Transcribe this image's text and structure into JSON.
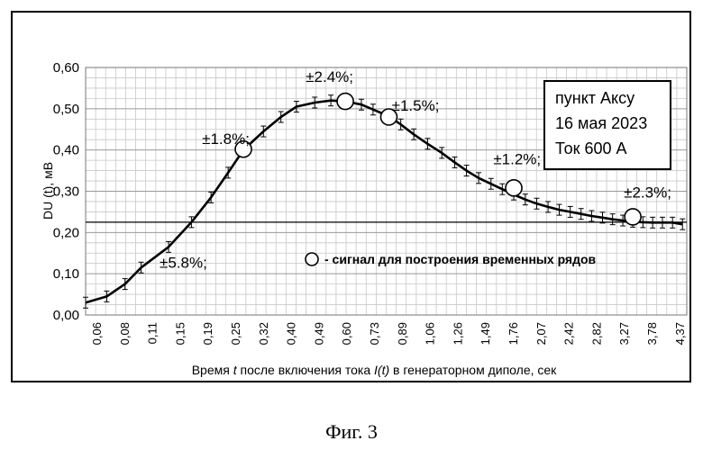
{
  "chart_data": {
    "type": "line",
    "ylabel": "DU (t), мВ",
    "xlabel": "Время t после включения тока I(t) в генераторном диполе, сек",
    "xlabel_parts": [
      {
        "text": "Время ",
        "italic": false
      },
      {
        "text": "t",
        "italic": true
      },
      {
        "text": " после включения тока ",
        "italic": false
      },
      {
        "text": "I(t)",
        "italic": true
      },
      {
        "text": " в генераторном диполе, сек",
        "italic": false
      }
    ],
    "ylim": [
      0,
      0.6
    ],
    "yticks": [
      "0,00",
      "0,10",
      "0,20",
      "0,30",
      "0,40",
      "0,50",
      "0,60"
    ],
    "x_tick_labels": [
      "0,06",
      "0,08",
      "0,11",
      "0,15",
      "0,19",
      "0,25",
      "0,32",
      "0,40",
      "0,49",
      "0,60",
      "0,73",
      "0,89",
      "1,06",
      "1,26",
      "1,49",
      "1,76",
      "2,07",
      "2,42",
      "2,82",
      "3,27",
      "3,78",
      "4,37"
    ],
    "grid": true,
    "reference_line_y": 0.225,
    "series": [
      {
        "x": [
          0.06,
          0.07,
          0.08,
          0.09,
          0.11,
          0.13,
          0.15,
          0.17,
          0.19,
          0.22,
          0.25,
          0.28,
          0.32,
          0.36,
          0.4,
          0.45,
          0.49,
          0.55,
          0.6,
          0.66,
          0.73,
          0.81,
          0.89,
          0.97,
          1.06,
          1.16,
          1.26,
          1.37,
          1.49,
          1.62,
          1.76,
          1.91,
          2.07,
          2.24,
          2.42,
          2.62,
          2.82,
          3.04,
          3.27,
          3.52,
          3.78,
          4.06,
          4.37,
          4.7
        ],
        "y": [
          0.03,
          0.045,
          0.075,
          0.115,
          0.165,
          0.225,
          0.285,
          0.345,
          0.4,
          0.445,
          0.48,
          0.505,
          0.515,
          0.52,
          0.518,
          0.51,
          0.498,
          0.482,
          0.462,
          0.438,
          0.415,
          0.393,
          0.37,
          0.35,
          0.332,
          0.318,
          0.305,
          0.292,
          0.28,
          0.27,
          0.262,
          0.255,
          0.25,
          0.245,
          0.24,
          0.236,
          0.232,
          0.229,
          0.226,
          0.225,
          0.224,
          0.224,
          0.224,
          0.22
        ]
      }
    ],
    "markers": [
      {
        "x": 0.19,
        "y": 0.402
      },
      {
        "x": 0.4,
        "y": 0.518
      },
      {
        "x": 0.55,
        "y": 0.48
      },
      {
        "x": 1.37,
        "y": 0.308
      },
      {
        "x": 3.27,
        "y": 0.238
      }
    ],
    "annotations": [
      {
        "text": "±5.8%;",
        "x": 0.11,
        "y": 0.115
      },
      {
        "text": "±1.8%;",
        "x": 0.15,
        "y": 0.415
      },
      {
        "text": "±2.4%;",
        "x": 0.32,
        "y": 0.565
      },
      {
        "text": "±1.5%;",
        "x": 0.6,
        "y": 0.495
      },
      {
        "text": "±1.2%;",
        "x": 1.26,
        "y": 0.365
      },
      {
        "text": "±2.3%;",
        "x": 3.27,
        "y": 0.285
      }
    ],
    "legend_text": "- сигнал для построения временных рядов",
    "info_box": [
      "пункт Аксу",
      "16 мая 2023",
      "Ток 600 А"
    ]
  },
  "figure_caption": "Фиг. 3"
}
